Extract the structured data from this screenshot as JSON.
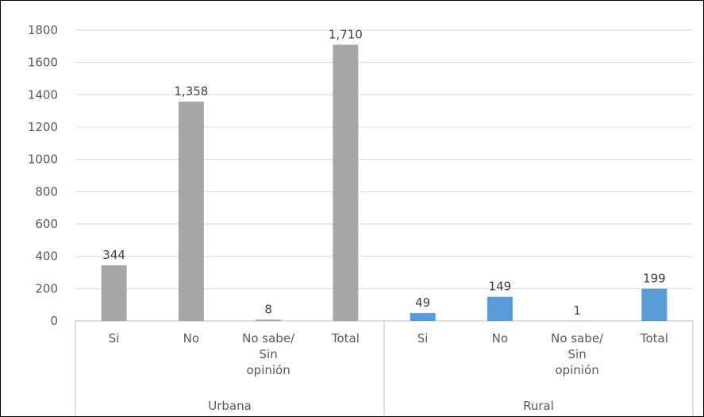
{
  "chart_data": {
    "type": "bar",
    "title": "",
    "xlabel": "",
    "ylabel": "",
    "ylim": [
      0,
      1800
    ],
    "yticks": [
      0,
      200,
      400,
      600,
      800,
      1000,
      1200,
      1400,
      1600,
      1800
    ],
    "grid": true,
    "legend": "none",
    "groups": [
      {
        "name": "Urbana",
        "color": "#a6a6a6",
        "categories": [
          [
            "Si"
          ],
          [
            "No"
          ],
          [
            "No sabe/",
            "Sin",
            "opinión"
          ],
          [
            "Total"
          ]
        ],
        "values": [
          344,
          1358,
          8,
          1710
        ],
        "labels": [
          "344",
          "1,358",
          "8",
          "1,710"
        ]
      },
      {
        "name": "Rural",
        "color": "#5b9bd5",
        "categories": [
          [
            "Si"
          ],
          [
            "No"
          ],
          [
            "No sabe/",
            "Sin",
            "opinión"
          ],
          [
            "Total"
          ]
        ],
        "values": [
          49,
          149,
          1,
          199
        ],
        "labels": [
          "49",
          "149",
          "1",
          "199"
        ]
      }
    ]
  }
}
